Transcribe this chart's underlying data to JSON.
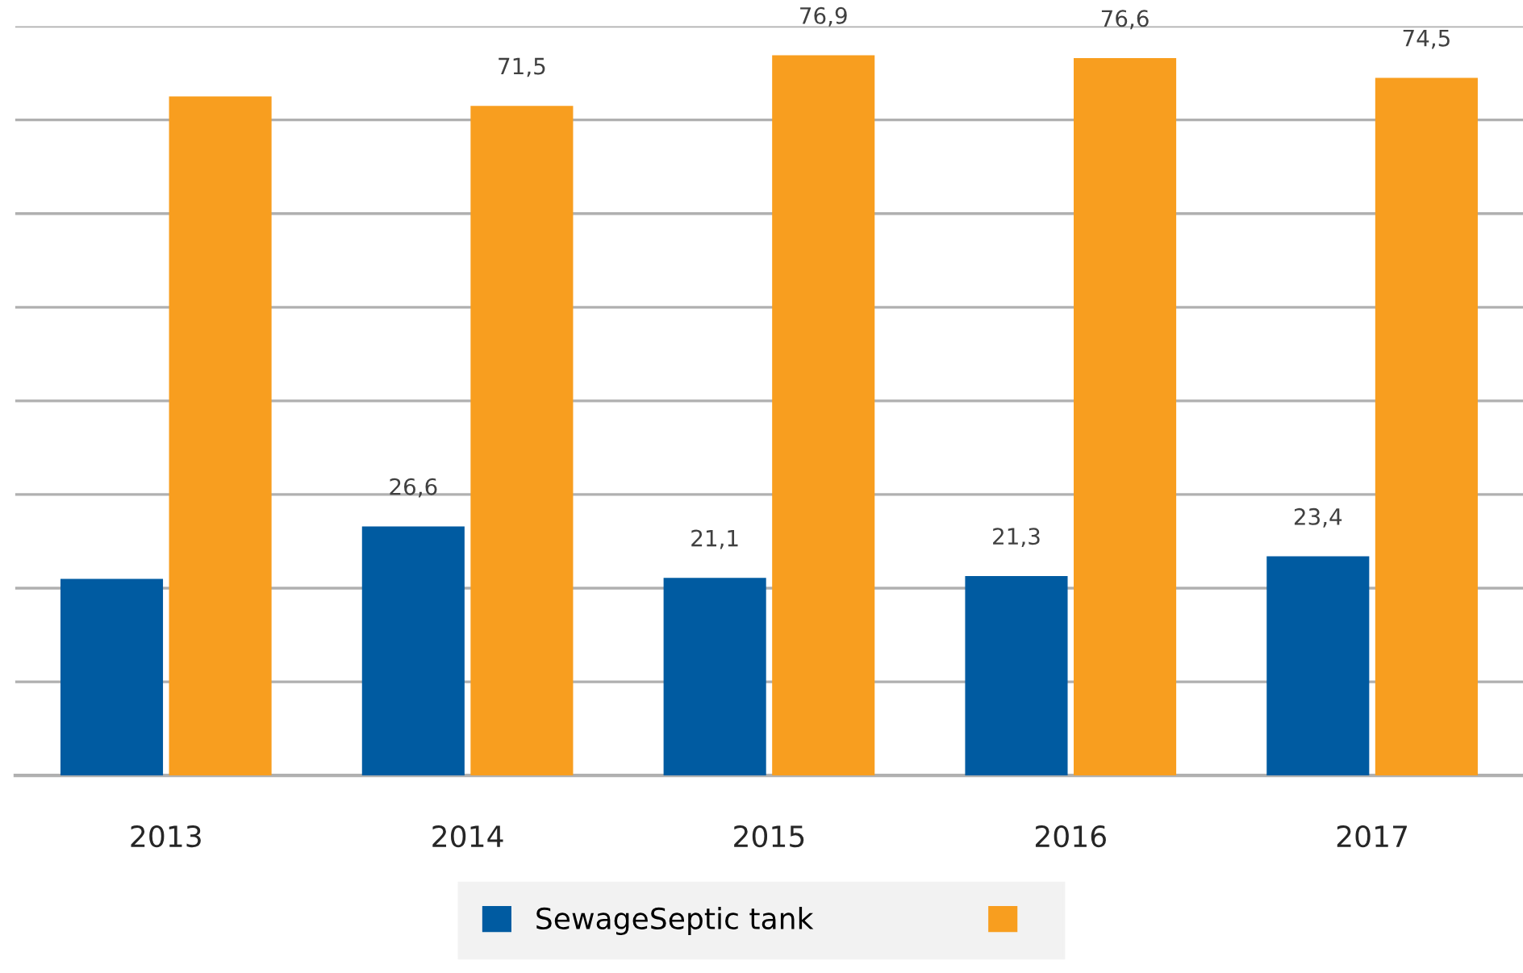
{
  "chart_data": {
    "type": "bar",
    "categories": [
      "2013",
      "2014",
      "2015",
      "2016",
      "2017"
    ],
    "series": [
      {
        "name": "SewageSeptic tank",
        "color": "#005ba1",
        "values": [
          21,
          26.6,
          21.1,
          21.3,
          23.4
        ],
        "value_labels": [
          null,
          "26,6",
          "21,1",
          "21,3",
          "23,4"
        ]
      },
      {
        "color": "#f89e1f",
        "values": [
          72.5,
          71.5,
          76.9,
          76.6,
          74.5
        ],
        "value_labels": [
          null,
          "71,5",
          "76,9",
          "76,6",
          "74,5"
        ]
      }
    ],
    "ylim": [
      0,
      80
    ],
    "yticks": [
      {
        "value": 0,
        "label": null
      },
      {
        "value": 10,
        "label": null
      },
      {
        "value": 20,
        "label": null
      },
      {
        "value": 30,
        "label": null
      },
      {
        "value": 40,
        "label": null
      },
      {
        "value": 50,
        "label": null
      },
      {
        "value": 60,
        "label": null
      },
      {
        "value": 70,
        "label": null
      },
      {
        "value": 80,
        "label": null
      }
    ],
    "grid": "y",
    "legend": "bottom",
    "tick_labels": "x"
  }
}
